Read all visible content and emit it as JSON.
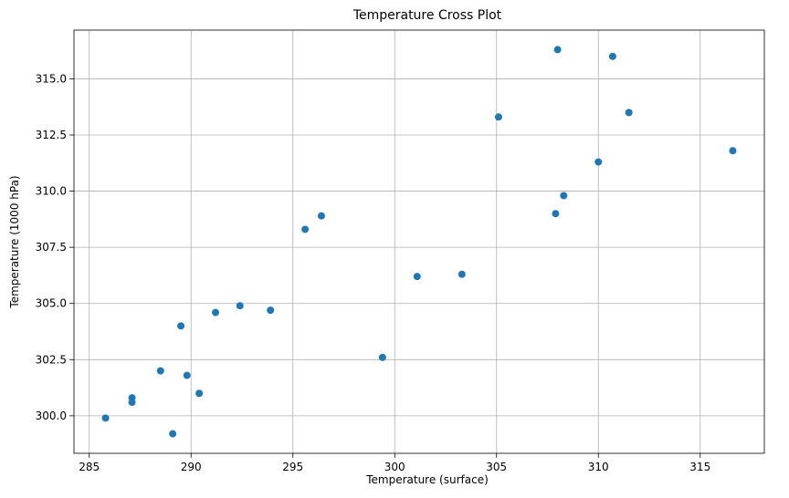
{
  "chart_data": {
    "type": "scatter",
    "title": "Temperature Cross Plot",
    "xlabel": "Temperature (surface)",
    "ylabel": "Temperature (1000 hPa)",
    "xlim": [
      284.25,
      318.15
    ],
    "ylim": [
      298.33,
      317.17
    ],
    "xticks": [
      285,
      290,
      295,
      300,
      305,
      310,
      315
    ],
    "xtick_labels": [
      "285",
      "290",
      "295",
      "300",
      "305",
      "310",
      "315"
    ],
    "yticks": [
      300.0,
      302.5,
      305.0,
      307.5,
      310.0,
      312.5,
      315.0
    ],
    "ytick_labels": [
      "300.0",
      "302.5",
      "305.0",
      "307.5",
      "310.0",
      "312.5",
      "315.0"
    ],
    "grid": true,
    "marker_color": "#1f77b4",
    "points": [
      {
        "x": 285.8,
        "y": 299.9
      },
      {
        "x": 287.1,
        "y": 300.8
      },
      {
        "x": 287.1,
        "y": 300.6
      },
      {
        "x": 288.5,
        "y": 302.0
      },
      {
        "x": 289.1,
        "y": 299.2
      },
      {
        "x": 289.5,
        "y": 304.0
      },
      {
        "x": 289.8,
        "y": 301.8
      },
      {
        "x": 290.4,
        "y": 301.0
      },
      {
        "x": 291.2,
        "y": 304.6
      },
      {
        "x": 292.4,
        "y": 304.9
      },
      {
        "x": 293.9,
        "y": 304.7
      },
      {
        "x": 295.6,
        "y": 308.3
      },
      {
        "x": 296.4,
        "y": 308.9
      },
      {
        "x": 299.4,
        "y": 302.6
      },
      {
        "x": 301.1,
        "y": 306.2
      },
      {
        "x": 303.3,
        "y": 306.3
      },
      {
        "x": 305.1,
        "y": 313.3
      },
      {
        "x": 307.9,
        "y": 309.0
      },
      {
        "x": 308.0,
        "y": 316.3
      },
      {
        "x": 308.3,
        "y": 309.8
      },
      {
        "x": 310.0,
        "y": 311.3
      },
      {
        "x": 310.7,
        "y": 316.0
      },
      {
        "x": 311.5,
        "y": 313.5
      },
      {
        "x": 316.6,
        "y": 311.8
      }
    ]
  }
}
